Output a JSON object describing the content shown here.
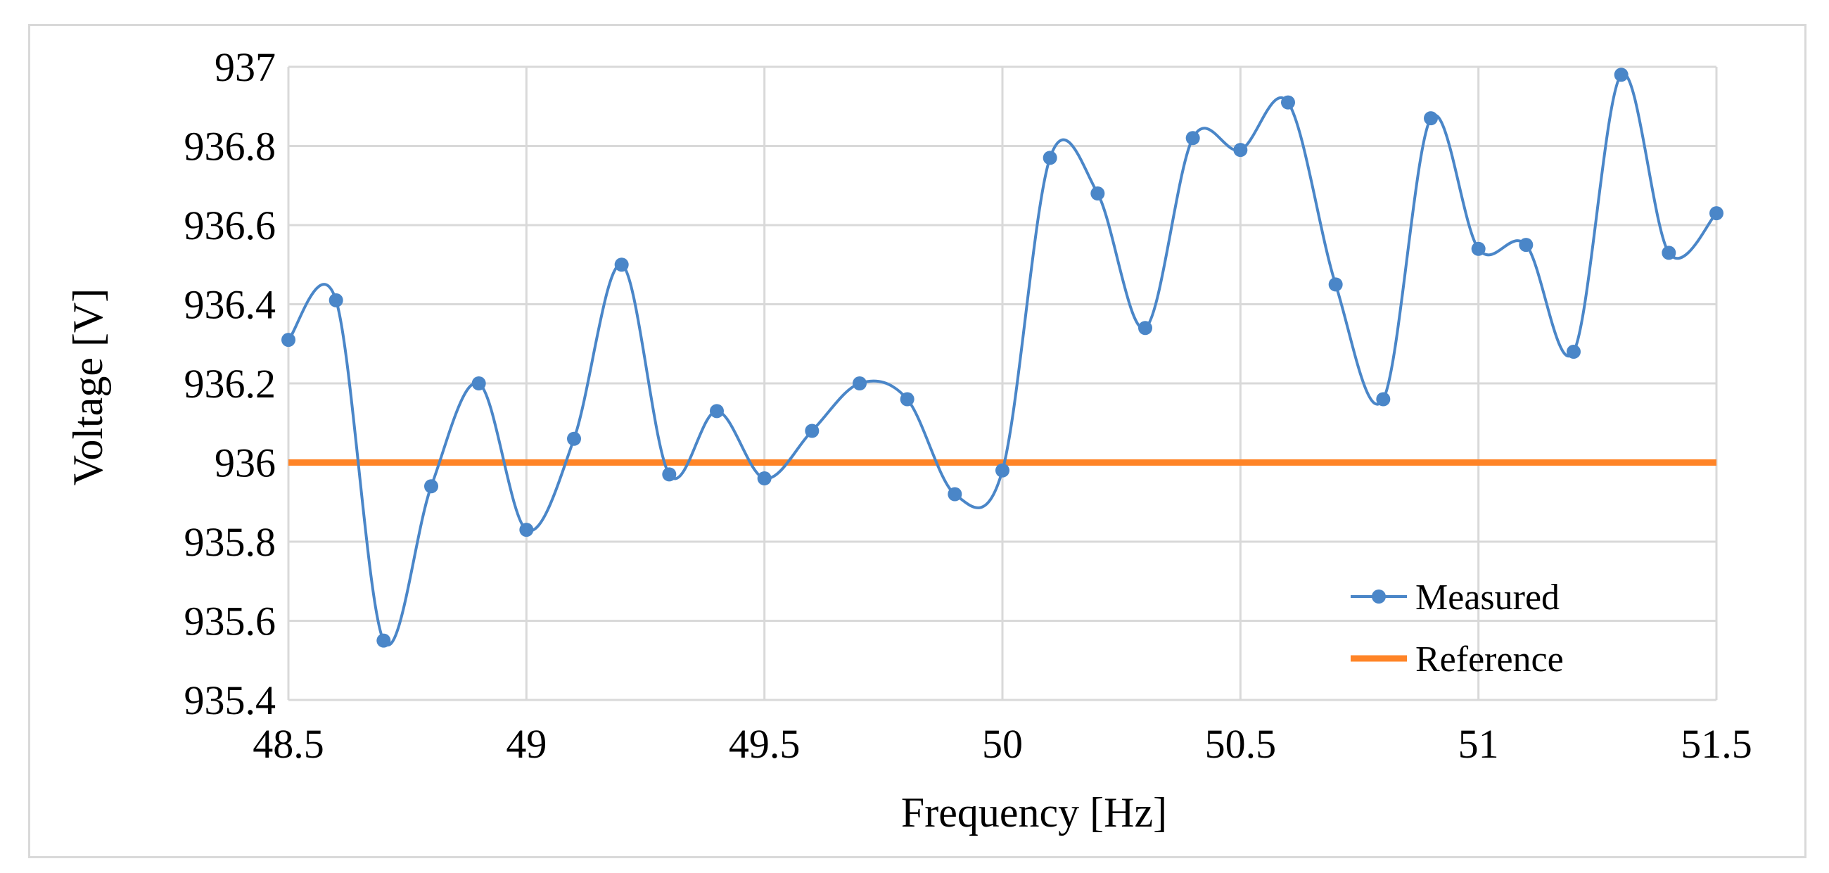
{
  "chart_data": {
    "type": "line",
    "title": "",
    "xlabel": "Frequency [Hz]",
    "ylabel": "Voltage [V]",
    "xlim": [
      48.5,
      51.5
    ],
    "ylim": [
      935.4,
      937
    ],
    "x_ticks": [
      "48.5",
      "49",
      "49.5",
      "50",
      "50.5",
      "51",
      "51.5"
    ],
    "x_tick_values": [
      48.5,
      49,
      49.5,
      50,
      50.5,
      51,
      51.5
    ],
    "y_ticks": [
      "935.4",
      "935.6",
      "935.8",
      "936",
      "936.2",
      "936.4",
      "936.6",
      "936.8",
      "937"
    ],
    "y_tick_values": [
      935.4,
      935.6,
      935.8,
      936,
      936.2,
      936.4,
      936.6,
      936.8,
      937
    ],
    "grid": true,
    "legend_position": "bottom-right",
    "series": [
      {
        "name": "Measured",
        "color": "#4a86c8",
        "smooth": true,
        "markers": true,
        "x": [
          48.5,
          48.6,
          48.7,
          48.8,
          48.9,
          49.0,
          49.1,
          49.2,
          49.3,
          49.4,
          49.5,
          49.6,
          49.7,
          49.8,
          49.9,
          50.0,
          50.1,
          50.2,
          50.3,
          50.4,
          50.5,
          50.6,
          50.7,
          50.8,
          50.9,
          51.0,
          51.1,
          51.2,
          51.3,
          51.4,
          51.5
        ],
        "values": [
          936.31,
          936.41,
          935.55,
          935.94,
          936.2,
          935.83,
          936.06,
          936.5,
          935.97,
          936.13,
          935.96,
          936.08,
          936.2,
          936.16,
          935.92,
          935.98,
          936.77,
          936.68,
          936.34,
          936.82,
          936.79,
          936.91,
          936.45,
          936.16,
          936.87,
          936.54,
          936.55,
          936.28,
          936.98,
          936.53,
          936.63
        ]
      },
      {
        "name": "Reference",
        "color": "#ff8427",
        "smooth": false,
        "markers": false,
        "x": [
          48.5,
          51.5
        ],
        "values": [
          936,
          936
        ]
      }
    ]
  }
}
